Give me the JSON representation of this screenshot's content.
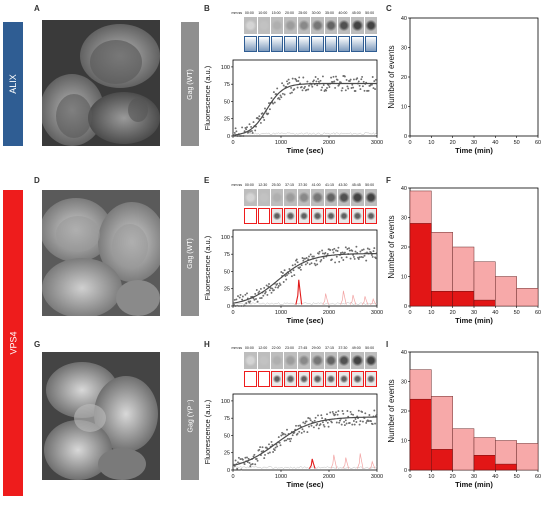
{
  "panel_labels": {
    "A": "A",
    "B": "B",
    "C": "C",
    "D": "D",
    "E": "E",
    "F": "F",
    "G": "G",
    "H": "H",
    "I": "I"
  },
  "row_labels": {
    "alix": "ALIX",
    "vps4": "VPS4"
  },
  "row_colors": {
    "alix": "#2f5d93",
    "vps4": "#ee1c1c"
  },
  "construct_labels": {
    "row1": "Gag (WT)",
    "row2": "Gag (WT)",
    "row3": "Gag (YP⁻)"
  },
  "timestamps": {
    "row1": [
      "mm:ss",
      "00:00",
      "10:00",
      "15:00",
      "20:00",
      "25:00",
      "30:00",
      "35:00",
      "40:00",
      "45:00",
      "50:00"
    ],
    "row2": [
      "mm:ss",
      "00:00",
      "12:30",
      "25:30",
      "37:15",
      "37:30",
      "41:00",
      "41:15",
      "43:30",
      "45:45",
      "50:00"
    ],
    "row3": [
      "mm:ss",
      "00:00",
      "12:00",
      "22:00",
      "23:00",
      "27:45",
      "29:00",
      "37:15",
      "37:30",
      "49:00",
      "50:00"
    ]
  },
  "chart_data": [
    {
      "panel": "B",
      "type": "scatter",
      "xlabel": "Time (sec)",
      "ylabel": "Fluorescence (a.u.)",
      "xlim": [
        0,
        3000
      ],
      "ylim": [
        0,
        110
      ],
      "xticks": [
        0,
        1000,
        2000,
        3000
      ],
      "yticks": [
        0,
        25,
        50,
        75,
        100
      ],
      "fit": {
        "plateau": 76,
        "midpoint": 700,
        "steepness": 170
      },
      "background_level": 3
    },
    {
      "panel": "C",
      "type": "bar",
      "xlabel": "Time (min)",
      "ylabel": "Number of events",
      "xlim": [
        0,
        60
      ],
      "ylim": [
        0,
        40
      ],
      "xticks": [
        0,
        10,
        20,
        30,
        40,
        50,
        60
      ],
      "yticks": [
        0,
        10,
        20,
        30,
        40
      ],
      "bins": [],
      "totals": [],
      "early": []
    },
    {
      "panel": "E",
      "type": "scatter",
      "xlabel": "Time (sec)",
      "ylabel": "Fluorescence (a.u.)",
      "xlim": [
        0,
        3000
      ],
      "ylim": [
        0,
        110
      ],
      "xticks": [
        0,
        1000,
        2000,
        3000
      ],
      "yticks": [
        0,
        25,
        50,
        75,
        100
      ],
      "fit": {
        "plateau": 76,
        "midpoint": 950,
        "steepness": 330
      },
      "spikes": [
        {
          "t": 1370,
          "h": 38,
          "dark": true
        },
        {
          "t": 1930,
          "h": 18,
          "dark": false
        },
        {
          "t": 2300,
          "h": 22,
          "dark": false
        },
        {
          "t": 2500,
          "h": 16,
          "dark": false
        },
        {
          "t": 2750,
          "h": 14,
          "dark": false
        },
        {
          "t": 2920,
          "h": 10,
          "dark": false
        }
      ]
    },
    {
      "panel": "F",
      "type": "bar",
      "xlabel": "Time (min)",
      "ylabel": "Number of events",
      "xlim": [
        0,
        60
      ],
      "ylim": [
        0,
        40
      ],
      "xticks": [
        0,
        10,
        20,
        30,
        40,
        50,
        60
      ],
      "yticks": [
        0,
        10,
        20,
        30,
        40
      ],
      "bins": [
        [
          0,
          10
        ],
        [
          10,
          20
        ],
        [
          20,
          30
        ],
        [
          30,
          40
        ],
        [
          40,
          50
        ],
        [
          50,
          60
        ]
      ],
      "totals": [
        39,
        25,
        20,
        15,
        10,
        6
      ],
      "early": [
        28,
        5,
        5,
        2,
        0,
        0
      ]
    },
    {
      "panel": "H",
      "type": "scatter",
      "xlabel": "Time (sec)",
      "ylabel": "Fluorescence (a.u.)",
      "xlim": [
        0,
        3000
      ],
      "ylim": [
        0,
        110
      ],
      "xticks": [
        0,
        1000,
        2000,
        3000
      ],
      "yticks": [
        0,
        25,
        50,
        75,
        100
      ],
      "fit": {
        "plateau": 77,
        "midpoint": 900,
        "steepness": 380
      },
      "spikes": [
        {
          "t": 1650,
          "h": 16,
          "dark": true
        },
        {
          "t": 2100,
          "h": 22,
          "dark": false
        },
        {
          "t": 2350,
          "h": 18,
          "dark": false
        },
        {
          "t": 2650,
          "h": 24,
          "dark": false
        },
        {
          "t": 2900,
          "h": 12,
          "dark": false
        }
      ]
    },
    {
      "panel": "I",
      "type": "bar",
      "xlabel": "Time (min)",
      "ylabel": "Number of events",
      "xlim": [
        0,
        60
      ],
      "ylim": [
        0,
        40
      ],
      "xticks": [
        0,
        10,
        20,
        30,
        40,
        50,
        60
      ],
      "yticks": [
        0,
        10,
        20,
        30,
        40
      ],
      "bins": [
        [
          0,
          10
        ],
        [
          10,
          20
        ],
        [
          20,
          30
        ],
        [
          30,
          40
        ],
        [
          40,
          50
        ],
        [
          50,
          60
        ]
      ],
      "totals": [
        34,
        25,
        14,
        11,
        10,
        9
      ],
      "early": [
        24,
        7,
        0,
        5,
        2,
        0
      ]
    }
  ]
}
